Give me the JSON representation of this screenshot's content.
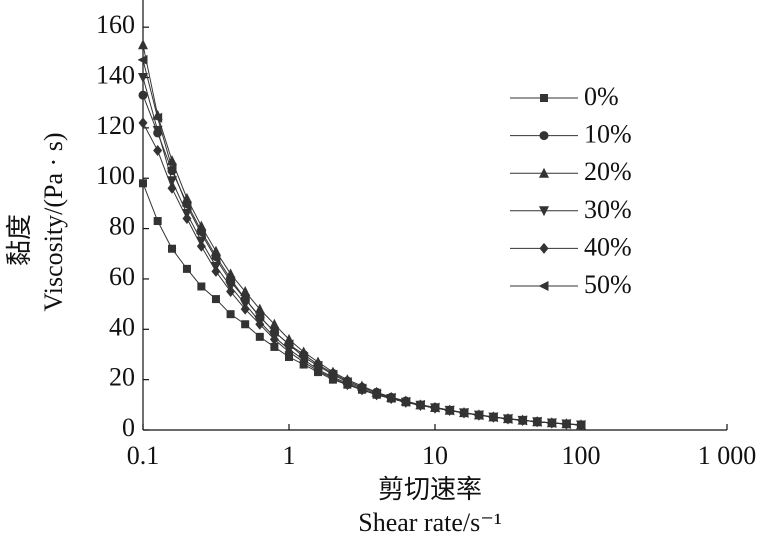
{
  "chart_data": {
    "type": "line",
    "x_label": "Shear rate/s⁻¹",
    "x_label_cn": "剪切速率",
    "y_label": "Viscosity/(Pa · s)",
    "y_label_cn": "黏度",
    "x": [
      0.1,
      0.126,
      0.158,
      0.2,
      0.251,
      0.316,
      0.398,
      0.501,
      0.631,
      0.794,
      1,
      1.26,
      1.58,
      2,
      2.51,
      3.16,
      3.98,
      5.01,
      6.31,
      7.94,
      10,
      12.6,
      15.8,
      20,
      25.1,
      31.6,
      39.8,
      50.1,
      63.1,
      79.4,
      100
    ],
    "xlim": [
      0.1,
      1000
    ],
    "xscale": "log",
    "xticks": [
      0.1,
      1,
      10,
      100,
      {
        "value": 1000,
        "label": "1 000"
      }
    ],
    "ylim": [
      0,
      170
    ],
    "yticks": [
      0,
      20,
      40,
      60,
      80,
      100,
      120,
      140,
      160
    ],
    "grid": false,
    "legend": "upper right",
    "series": [
      {
        "name": "0%",
        "color": "#333333",
        "marker": "square",
        "values": [
          98,
          83,
          72,
          64,
          57,
          52,
          46,
          42,
          37,
          33,
          29,
          26,
          23,
          20,
          18,
          16,
          14,
          12.5,
          11,
          10,
          8.8,
          7.7,
          6.8,
          5.9,
          5.1,
          4.4,
          3.8,
          3.3,
          2.8,
          2.4,
          2.0
        ]
      },
      {
        "name": "10%",
        "color": "#333333",
        "marker": "circle",
        "values": [
          133,
          118,
          103,
          90,
          79,
          69,
          60,
          52,
          45,
          39,
          34,
          30,
          26,
          22.5,
          19.5,
          17,
          15,
          13,
          11.5,
          10,
          9,
          7.8,
          6.8,
          5.9,
          5.1,
          4.4,
          3.8,
          3.3,
          2.8,
          2.4,
          2.0
        ]
      },
      {
        "name": "20%",
        "color": "#333333",
        "marker": "triangle-up",
        "values": [
          153,
          125,
          107,
          92,
          81,
          71,
          62,
          55,
          48,
          42,
          36,
          31,
          27,
          23,
          20,
          17.5,
          15,
          13,
          11.5,
          10,
          9,
          7.9,
          6.9,
          6.0,
          5.2,
          4.5,
          3.9,
          3.3,
          2.9,
          2.5,
          2.1
        ]
      },
      {
        "name": "30%",
        "color": "#333333",
        "marker": "triangle-down",
        "values": [
          140,
          119,
          99,
          86,
          75,
          65,
          57,
          50,
          43,
          37,
          32,
          28,
          24,
          21,
          18.5,
          16,
          14,
          12.5,
          11,
          9.8,
          8.8,
          7.8,
          6.8,
          5.9,
          5.1,
          4.4,
          3.8,
          3.3,
          2.8,
          2.4,
          2.0
        ]
      },
      {
        "name": "40%",
        "color": "#333333",
        "marker": "diamond",
        "values": [
          122,
          111,
          96,
          84,
          73,
          63,
          55,
          48,
          42,
          36,
          31,
          27,
          23.5,
          20.5,
          18,
          16,
          14,
          12.5,
          11,
          9.8,
          8.7,
          7.8,
          6.8,
          5.9,
          5.1,
          4.4,
          3.8,
          3.3,
          2.8,
          2.4,
          2.0
        ]
      },
      {
        "name": "50%",
        "color": "#333333",
        "marker": "triangle-left",
        "values": [
          147,
          124,
          104,
          89,
          78,
          68,
          59,
          52,
          45,
          39,
          34,
          29,
          25.5,
          22,
          19,
          16.5,
          14.5,
          12.8,
          11.2,
          10,
          8.9,
          7.8,
          6.8,
          5.9,
          5.1,
          4.4,
          3.8,
          3.3,
          2.8,
          2.4,
          2.0
        ]
      }
    ]
  }
}
